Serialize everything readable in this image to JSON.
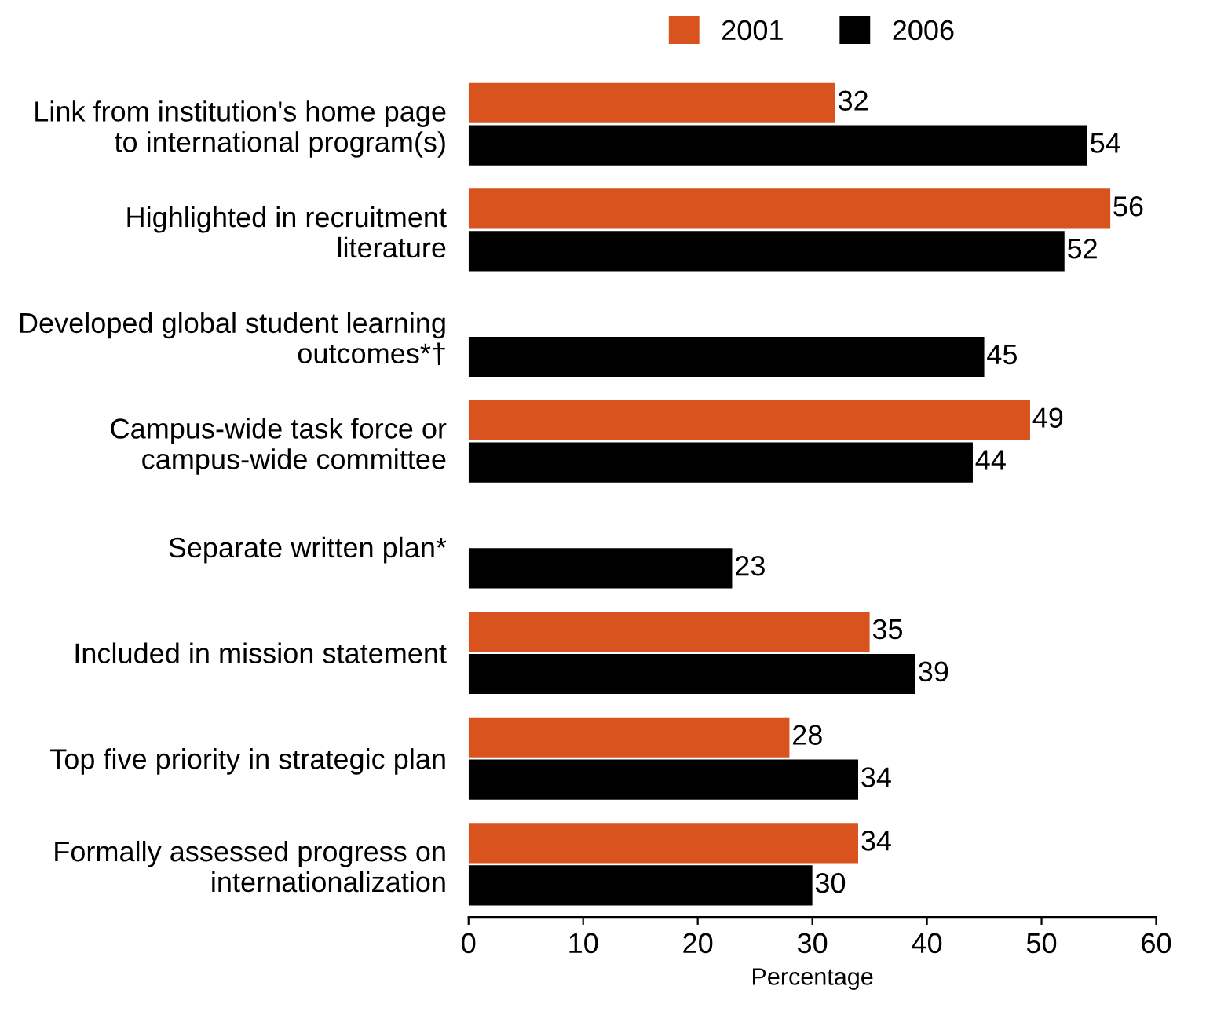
{
  "chart_data": {
    "type": "bar",
    "orientation": "horizontal",
    "xlabel": "Percentage",
    "categories": [
      "Link from institution's home page\nto international program(s)",
      "Highlighted in recruitment\nliterature",
      "Developed global student learning\noutcomes*†",
      "Campus-wide task force or\ncampus-wide committee",
      "Separate written plan*",
      "Included in mission statement",
      "Top five priority in strategic plan",
      "Formally assessed progress on\ninternationalization"
    ],
    "series": [
      {
        "name": "2001",
        "color": "#d9531e",
        "values": [
          32,
          56,
          null,
          49,
          null,
          35,
          28,
          34
        ]
      },
      {
        "name": "2006",
        "color": "#000000",
        "values": [
          54,
          52,
          45,
          44,
          23,
          39,
          34,
          30
        ]
      }
    ],
    "xlim": [
      0,
      60
    ],
    "xticks": [
      0,
      10,
      20,
      30,
      40,
      50,
      60
    ],
    "data_labels": true,
    "legend": "top",
    "grid": false
  }
}
